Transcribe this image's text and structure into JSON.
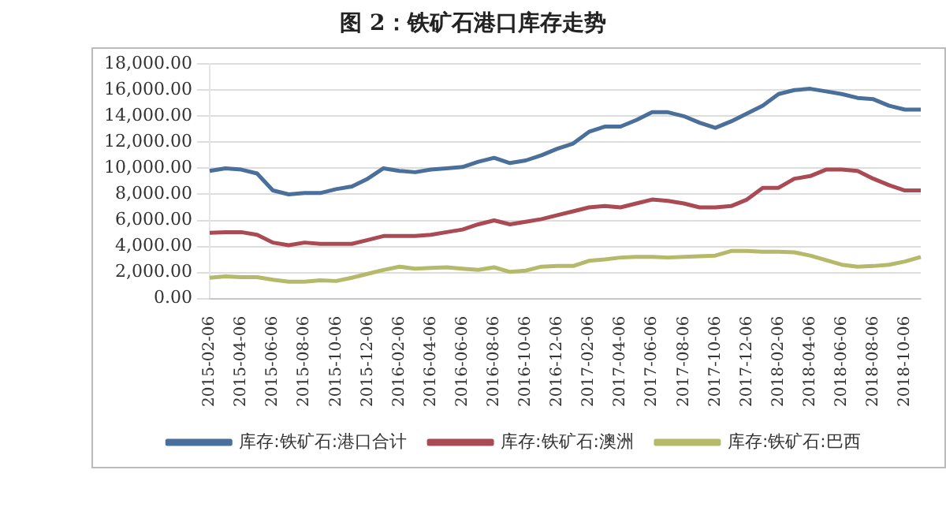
{
  "chart_data": {
    "type": "line",
    "title": "图 2：铁矿石港口库存走势",
    "categories": [
      "2015-02-06",
      null,
      "2015-04-06",
      null,
      "2015-06-06",
      null,
      "2015-08-06",
      null,
      "2015-10-06",
      null,
      "2015-12-06",
      null,
      "2016-02-06",
      null,
      "2016-04-06",
      null,
      "2016-06-06",
      null,
      "2016-08-06",
      null,
      "2016-10-06",
      null,
      "2016-12-06",
      null,
      "2017-02-06",
      null,
      "2017-04-06",
      null,
      "2017-06-06",
      null,
      "2017-08-06",
      null,
      "2017-10-06",
      null,
      "2017-12-06",
      null,
      "2018-02-06",
      null,
      "2018-04-06",
      null,
      "2018-06-06",
      null,
      "2018-08-06",
      null,
      "2018-10-06",
      null
    ],
    "series": [
      {
        "name": "库存:铁矿石:港口合计",
        "color": "#4a6f9a",
        "values": [
          9800,
          10000,
          9900,
          9600,
          8300,
          8000,
          8100,
          8100,
          8400,
          8600,
          9200,
          10000,
          9800,
          9700,
          9900,
          10000,
          10100,
          10500,
          10800,
          10400,
          10600,
          11000,
          11500,
          11900,
          12800,
          13200,
          13200,
          13700,
          14300,
          14300,
          14000,
          13500,
          13100,
          13600,
          14200,
          14800,
          15700,
          16000,
          16100,
          15900,
          15700,
          15400,
          15300,
          14800,
          14500,
          14500
        ]
      },
      {
        "name": "库存:铁矿石:澳洲",
        "color": "#a94a55",
        "values": [
          5050,
          5100,
          5100,
          4900,
          4300,
          4100,
          4300,
          4200,
          4200,
          4200,
          4500,
          4800,
          4800,
          4800,
          4900,
          5100,
          5300,
          5700,
          6000,
          5700,
          5900,
          6100,
          6400,
          6700,
          7000,
          7100,
          7000,
          7300,
          7600,
          7500,
          7300,
          7000,
          7000,
          7100,
          7600,
          8500,
          8500,
          9200,
          9400,
          9900,
          9900,
          9800,
          9200,
          8700,
          8300,
          8300
        ]
      },
      {
        "name": "库存:铁矿石:巴西",
        "color": "#b5b96a",
        "values": [
          1600,
          1700,
          1650,
          1650,
          1450,
          1300,
          1300,
          1400,
          1350,
          1600,
          1900,
          2200,
          2450,
          2300,
          2350,
          2400,
          2300,
          2200,
          2400,
          2050,
          2150,
          2450,
          2500,
          2500,
          2900,
          3000,
          3150,
          3200,
          3200,
          3150,
          3200,
          3250,
          3300,
          3650,
          3650,
          3600,
          3600,
          3550,
          3300,
          2950,
          2600,
          2450,
          2500,
          2600,
          2850,
          3200
        ]
      }
    ],
    "ylim": [
      0,
      18000
    ],
    "yticks": [
      {
        "value": 0,
        "label": "0.00"
      },
      {
        "value": 2000,
        "label": "2,000.00"
      },
      {
        "value": 4000,
        "label": "4,000.00"
      },
      {
        "value": 6000,
        "label": "6,000.00"
      },
      {
        "value": 8000,
        "label": "8,000.00"
      },
      {
        "value": 10000,
        "label": "10,000.00"
      },
      {
        "value": 12000,
        "label": "12,000.00"
      },
      {
        "value": 14000,
        "label": "14,000.00"
      },
      {
        "value": 16000,
        "label": "16,000.00"
      },
      {
        "value": 18000,
        "label": "18,000.00"
      }
    ],
    "grid": "y",
    "legend": "bottom",
    "marker": "none",
    "line_style": "solid"
  }
}
